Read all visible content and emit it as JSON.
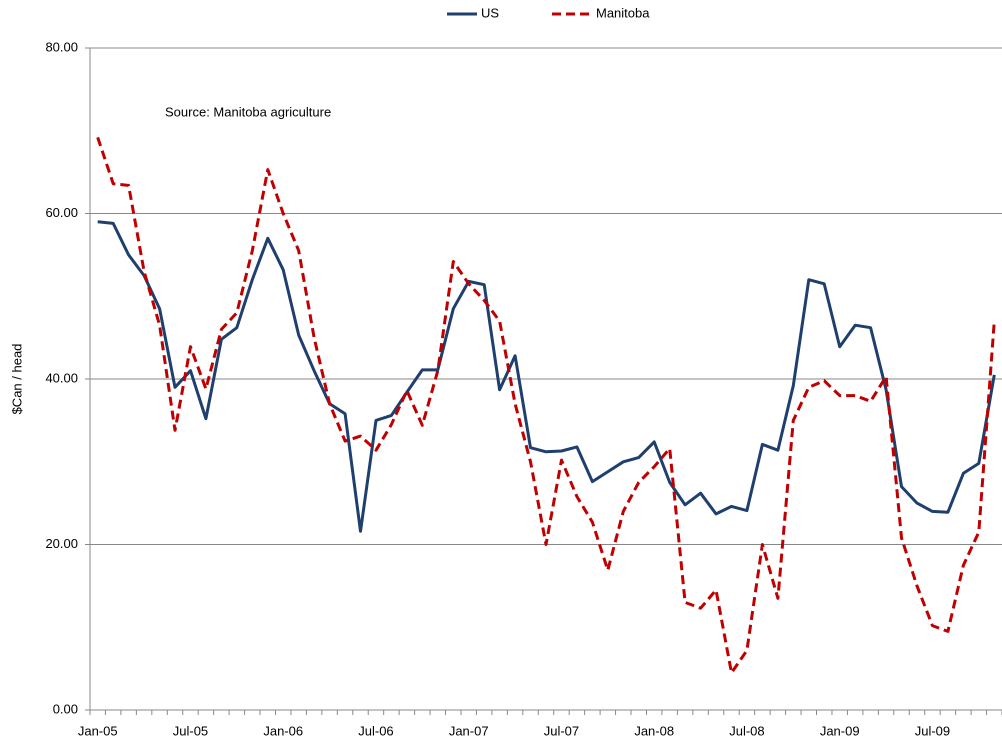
{
  "chart_data": {
    "type": "line",
    "y_label": "$Can / head",
    "annotation": "Source: Manitoba agriculture",
    "categories": [
      "Jan-05",
      null,
      null,
      null,
      null,
      null,
      "Jul-05",
      null,
      null,
      null,
      null,
      null,
      "Jan-06",
      null,
      null,
      null,
      null,
      null,
      "Jul-06",
      null,
      null,
      null,
      null,
      null,
      "Jan-07",
      null,
      null,
      null,
      null,
      null,
      "Jul-07",
      null,
      null,
      null,
      null,
      null,
      "Jan-08",
      null,
      null,
      null,
      null,
      null,
      "Jul-08",
      null,
      null,
      null,
      null,
      null,
      "Jan-09",
      null,
      null,
      null,
      null,
      null,
      "Jul-09",
      null,
      null,
      null,
      null
    ],
    "series": [
      {
        "name": "US",
        "color": "#1f3f6e",
        "dash": false,
        "values": [
          59.0,
          58.8,
          55.0,
          52.5,
          48.5,
          39.0,
          41.0,
          35.2,
          44.8,
          46.2,
          52.0,
          57.0,
          53.2,
          45.3,
          41.0,
          37.0,
          35.8,
          21.6,
          35.0,
          35.6,
          38.4,
          41.1,
          41.1,
          48.5,
          51.8,
          51.4,
          38.7,
          42.8,
          31.7,
          31.2,
          31.3,
          31.8,
          27.6,
          28.8,
          30.0,
          30.5,
          32.4,
          27.5,
          24.8,
          26.2,
          23.7,
          24.6,
          24.1,
          32.1,
          31.4,
          39.2,
          52.0,
          51.5,
          43.9,
          46.5,
          46.2,
          38.7,
          27.0,
          25.0,
          24.0,
          23.9,
          28.6,
          29.8,
          40.5
        ]
      },
      {
        "name": "Manitoba",
        "color": "#c00000",
        "dash": true,
        "values": [
          69.2,
          63.6,
          63.4,
          53.0,
          46.5,
          33.8,
          43.9,
          38.8,
          46.0,
          48.0,
          55.5,
          65.3,
          60.0,
          55.5,
          45.0,
          37.0,
          32.5,
          33.1,
          31.4,
          34.5,
          38.6,
          34.4,
          41.0,
          54.2,
          51.5,
          49.5,
          47.0,
          37.0,
          30.0,
          20.0,
          30.2,
          25.8,
          22.7,
          16.9,
          24.0,
          27.5,
          29.4,
          31.6,
          13.0,
          12.3,
          14.5,
          4.5,
          7.2,
          20.0,
          13.5,
          35.0,
          39.0,
          39.8,
          38.0,
          38.0,
          37.3,
          40.3,
          20.8,
          15.0,
          10.2,
          9.5,
          17.5,
          21.5,
          47.0
        ]
      }
    ],
    "ylim": [
      0,
      80
    ],
    "yticks": [
      {
        "value": 0,
        "label": "0.00"
      },
      {
        "value": 20,
        "label": "20.00"
      },
      {
        "value": 40,
        "label": "40.00"
      },
      {
        "value": 60,
        "label": "60.00"
      },
      {
        "value": 80,
        "label": "80.00"
      }
    ],
    "grid": true,
    "legend": "top"
  }
}
